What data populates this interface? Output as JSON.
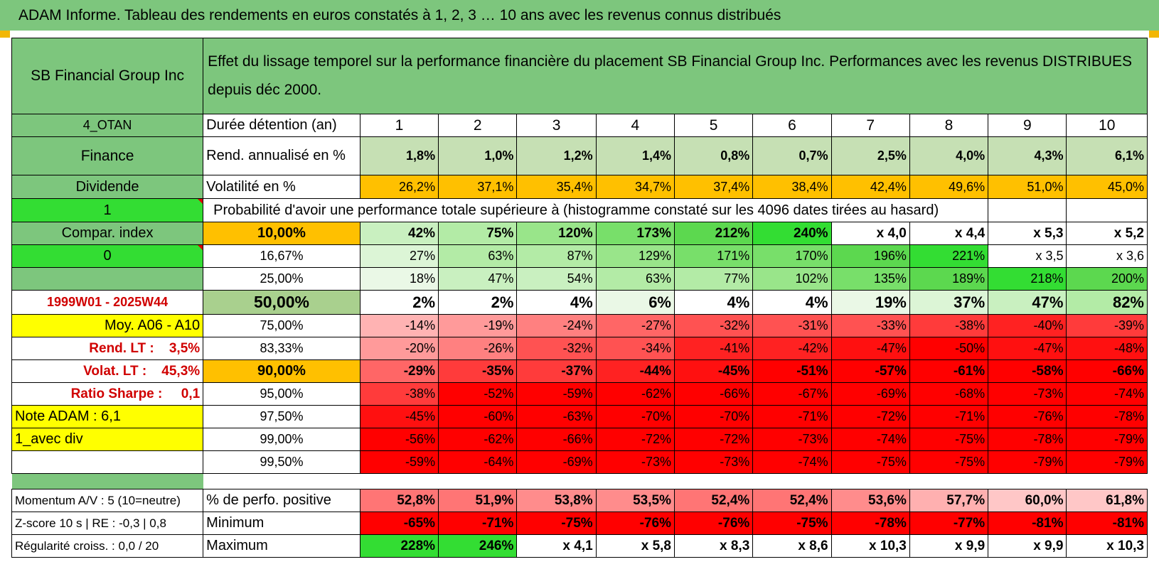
{
  "title": "ADAM Informe. Tableau des rendements en euros constatés à 1, 2, 3 … 10 ans avec les revenus connus distribués",
  "header": {
    "company": "SB Financial Group Inc",
    "description": "Effet du lissage temporel sur la performance financière du placement SB Financial Group Inc. Performances avec les revenus DISTRIBUES depuis déc 2000."
  },
  "colors": {
    "header_green": "#7dc67d",
    "orange": "#ffc000",
    "yellow": "#ffff00",
    "bright_green": "#33dd33",
    "red": "#ff0000"
  },
  "info": {
    "code": "4_OTAN",
    "sector": "Finance",
    "type": "Dividende",
    "param1": "1",
    "compar_label": "Compar. index",
    "param0": "0",
    "period": "1999W01 - 2025W44",
    "moy": "Moy. A06 - A10",
    "rend_lt": "Rend. LT :    3,5%",
    "volat_lt": "Volat. LT :    45,3%",
    "sharpe": "Ratio Sharpe :     0,1",
    "note": "Note ADAM : 6,1",
    "avec_div": "1_avec div"
  },
  "durations": {
    "label": "Durée détention (an)",
    "values": [
      "1",
      "2",
      "3",
      "4",
      "5",
      "6",
      "7",
      "8",
      "9",
      "10"
    ]
  },
  "rend": {
    "label": "Rend. annualisé en %",
    "values": [
      "1,8%",
      "1,0%",
      "1,2%",
      "1,4%",
      "0,8%",
      "0,7%",
      "2,5%",
      "4,0%",
      "4,3%",
      "6,1%"
    ]
  },
  "vol": {
    "label": "Volatilité en %",
    "values": [
      "26,2%",
      "37,1%",
      "35,4%",
      "34,7%",
      "37,4%",
      "38,4%",
      "42,4%",
      "49,6%",
      "51,0%",
      "45,0%"
    ]
  },
  "prob_label": "Probabilité d'avoir une performance totale supérieure à (histogramme constaté sur les 4096 dates tirées au hasard)",
  "prob_rows": [
    {
      "p": "10,00%",
      "v": [
        "42%",
        "75%",
        "120%",
        "173%",
        "212%",
        "240%",
        "x 4,0",
        "x 4,4",
        "x 5,3",
        "x 5,2"
      ]
    },
    {
      "p": "16,67%",
      "v": [
        "27%",
        "63%",
        "87%",
        "129%",
        "171%",
        "170%",
        "196%",
        "221%",
        "x 3,5",
        "x 3,6"
      ]
    },
    {
      "p": "25,00%",
      "v": [
        "18%",
        "47%",
        "54%",
        "63%",
        "77%",
        "102%",
        "135%",
        "189%",
        "218%",
        "200%"
      ]
    },
    {
      "p": "50,00%",
      "v": [
        "2%",
        "2%",
        "4%",
        "6%",
        "4%",
        "4%",
        "19%",
        "37%",
        "47%",
        "82%"
      ]
    },
    {
      "p": "75,00%",
      "v": [
        "-14%",
        "-19%",
        "-24%",
        "-27%",
        "-32%",
        "-31%",
        "-33%",
        "-38%",
        "-40%",
        "-39%"
      ]
    },
    {
      "p": "83,33%",
      "v": [
        "-20%",
        "-26%",
        "-32%",
        "-34%",
        "-41%",
        "-42%",
        "-47%",
        "-50%",
        "-47%",
        "-48%"
      ]
    },
    {
      "p": "90,00%",
      "v": [
        "-29%",
        "-35%",
        "-37%",
        "-44%",
        "-45%",
        "-51%",
        "-57%",
        "-61%",
        "-58%",
        "-66%"
      ]
    },
    {
      "p": "95,00%",
      "v": [
        "-38%",
        "-52%",
        "-59%",
        "-62%",
        "-66%",
        "-67%",
        "-69%",
        "-68%",
        "-73%",
        "-74%"
      ]
    },
    {
      "p": "97,50%",
      "v": [
        "-45%",
        "-60%",
        "-63%",
        "-70%",
        "-70%",
        "-71%",
        "-72%",
        "-71%",
        "-76%",
        "-78%"
      ]
    },
    {
      "p": "99,00%",
      "v": [
        "-56%",
        "-62%",
        "-66%",
        "-72%",
        "-72%",
        "-73%",
        "-74%",
        "-75%",
        "-78%",
        "-79%"
      ]
    },
    {
      "p": "99,50%",
      "v": [
        "-59%",
        "-64%",
        "-69%",
        "-73%",
        "-73%",
        "-74%",
        "-75%",
        "-75%",
        "-79%",
        "-79%"
      ]
    }
  ],
  "bottom": [
    {
      "left": "Momentum A/V : 5 (10=neutre)",
      "label": "% de perfo. positive",
      "v": [
        "52,8%",
        "51,9%",
        "53,8%",
        "53,5%",
        "52,4%",
        "52,4%",
        "53,6%",
        "57,7%",
        "60,0%",
        "61,8%"
      ]
    },
    {
      "left": "Z-score 10 s | RE : -0,3 | 0,8",
      "label": "Minimum",
      "v": [
        "-65%",
        "-71%",
        "-75%",
        "-76%",
        "-76%",
        "-75%",
        "-78%",
        "-77%",
        "-81%",
        "-81%"
      ]
    },
    {
      "left": "Régularité croiss. : 0,0 / 20",
      "label": "Maximum",
      "v": [
        "228%",
        "246%",
        "x 4,1",
        "x 5,8",
        "x 8,3",
        "x 8,6",
        "x 10,3",
        "x 9,9",
        "x 9,9",
        "x 10,3"
      ]
    }
  ]
}
